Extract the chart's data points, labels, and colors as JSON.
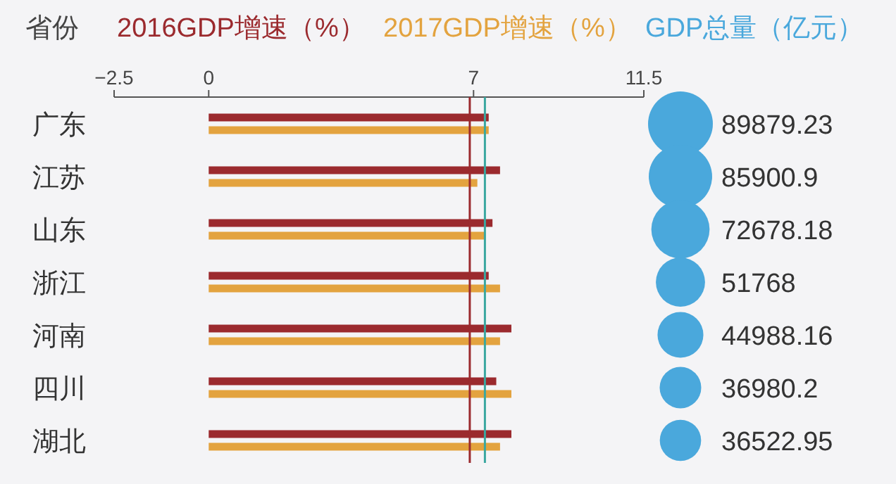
{
  "chart_data": [
    {
      "type": "bar",
      "orientation": "horizontal",
      "ylabel": "省份",
      "categories": [
        "广东",
        "江苏",
        "山东",
        "浙江",
        "河南",
        "四川",
        "湖北"
      ],
      "series": [
        {
          "name": "2016GDP增速（%）",
          "color": "#9b2a2e",
          "values": [
            7.4,
            7.7,
            7.5,
            7.4,
            8.0,
            7.6,
            8.0
          ]
        },
        {
          "name": "2017GDP增速（%）",
          "color": "#e3a33f",
          "values": [
            7.4,
            7.1,
            7.3,
            7.7,
            7.7,
            8.0,
            7.7
          ]
        }
      ],
      "xlim": [
        -2.5,
        11.5
      ],
      "xticks": [
        {
          "value": -2.5,
          "label": "−2.5"
        },
        0,
        7,
        11.5
      ],
      "legend": "top",
      "ref_lines": [
        {
          "axis": "x",
          "value": 6.9,
          "color": "#9b2a2e"
        },
        {
          "axis": "x",
          "value": 7.3,
          "color": "#3aa7a0"
        }
      ]
    },
    {
      "type": "other",
      "title": "GDP总量（亿元）",
      "series": [
        {
          "color": "#4aa8dc",
          "values": [
            89879.23,
            85900.9,
            72678.18,
            51768,
            44988.16,
            36980.2,
            36522.95
          ]
        }
      ],
      "data_labels": true
    }
  ]
}
